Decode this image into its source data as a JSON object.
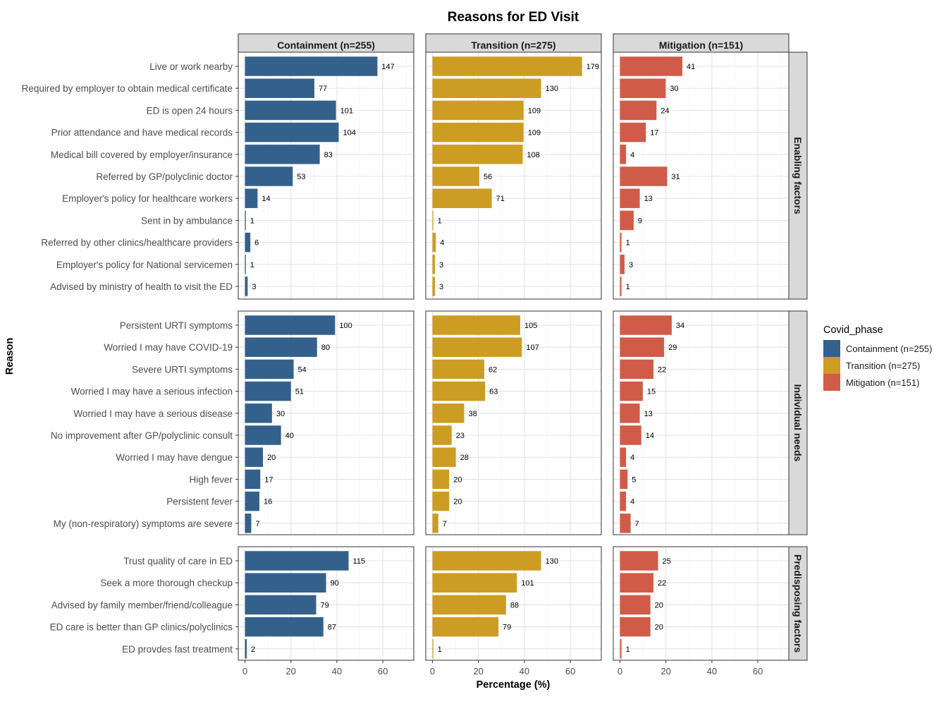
{
  "chart_data": {
    "type": "bar",
    "orientation": "horizontal",
    "title": "Reasons for ED Visit",
    "xlabel": "Percentage (%)",
    "ylabel": "Reason",
    "xlim": [
      0,
      73
    ],
    "xticks": [
      0,
      20,
      40,
      60
    ],
    "grid": true,
    "legend_position": "right",
    "legend": {
      "title": "Covid_phase",
      "entries": [
        "Containment (n=255)",
        "Transition (n=275)",
        "Mitigation (n=151)"
      ]
    },
    "colors": [
      "#34618b",
      "#cc9d22",
      "#d05b48"
    ],
    "series": [
      {
        "name": "Containment (n=255)",
        "n": 255,
        "color": "#34618b"
      },
      {
        "name": "Transition (n=275)",
        "n": 275,
        "color": "#cc9d22"
      },
      {
        "name": "Mitigation (n=151)",
        "n": 151,
        "color": "#d05b48"
      }
    ],
    "groups": [
      {
        "label": "Enabling factors",
        "categories": [
          "Live or work nearby",
          "Required by employer to obtain medical certificate",
          "ED is open 24 hours",
          "Prior attendance and have medical records",
          "Medical bill covered by employer/insurance",
          "Referred by GP/polyclinic doctor",
          "Employer's policy for healthcare workers",
          "Sent in by ambulance",
          "Referred by other clinics/healthcare providers",
          "Employer's policy for National servicemen",
          "Advised by ministry of health to visit the ED"
        ],
        "counts": [
          [
            147,
            77,
            101,
            104,
            83,
            53,
            14,
            1,
            6,
            1,
            3
          ],
          [
            179,
            130,
            109,
            109,
            108,
            56,
            71,
            1,
            4,
            3,
            3
          ],
          [
            41,
            30,
            24,
            17,
            4,
            31,
            13,
            9,
            1,
            3,
            1
          ]
        ]
      },
      {
        "label": "Individual needs",
        "categories": [
          "Persistent URTI symptoms",
          "Worried I may have COVID-19",
          "Severe URTI symptoms",
          "Worried I may have a serious infection",
          "Worried I may have a serious disease",
          "No improvement after GP/polyclinic consult",
          "Worried I may have dengue",
          "High fever",
          "Persistent fever",
          "My (non-respiratory) symptoms are severe"
        ],
        "counts": [
          [
            100,
            80,
            54,
            51,
            30,
            40,
            20,
            17,
            16,
            7
          ],
          [
            105,
            107,
            62,
            63,
            38,
            23,
            28,
            20,
            20,
            7
          ],
          [
            34,
            29,
            22,
            15,
            13,
            14,
            4,
            5,
            4,
            7
          ]
        ]
      },
      {
        "label": "Predisposing factors",
        "categories": [
          "Trust quality of care in ED",
          "Seek a more thorough checkup",
          "Advised by family member/friend/colleague",
          "ED care is better than GP clinics/polyclinics",
          "ED provdes fast treatment"
        ],
        "counts": [
          [
            115,
            90,
            79,
            87,
            2
          ],
          [
            130,
            101,
            88,
            79,
            1
          ],
          [
            25,
            22,
            20,
            20,
            1
          ]
        ]
      }
    ]
  }
}
